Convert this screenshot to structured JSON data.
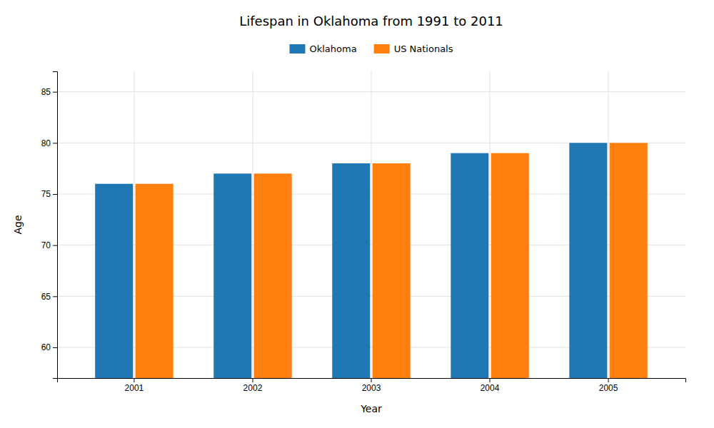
{
  "chart_data": {
    "type": "bar",
    "title": "Lifespan in Oklahoma from 1991 to 2011",
    "xlabel": "Year",
    "ylabel": "Age",
    "categories": [
      "2001",
      "2002",
      "2003",
      "2004",
      "2005"
    ],
    "series": [
      {
        "name": "Oklahoma",
        "values": [
          76,
          77,
          78,
          79,
          80
        ]
      },
      {
        "name": "US Nationals",
        "values": [
          76,
          77,
          78,
          79,
          80
        ]
      }
    ],
    "ylim": [
      57,
      87
    ],
    "yticks": [
      60,
      65,
      70,
      75,
      80,
      85
    ],
    "grid": true,
    "legend": "top"
  }
}
